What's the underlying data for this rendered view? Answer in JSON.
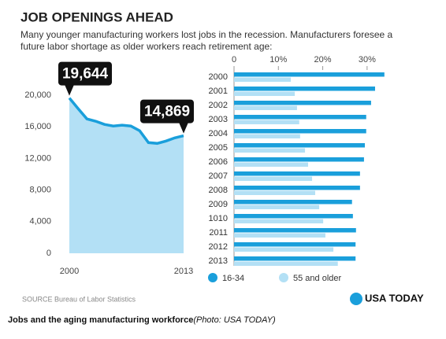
{
  "title": "JOB OPENINGS AHEAD",
  "subtitle": [
    "Many younger manufacturing workers lost jobs in the recession. Manufacturers foresee a",
    "future labor shortage as older workers reach retirement age:"
  ],
  "source": "SOURCE Bureau of Labor Statistics",
  "logo": "USA TODAY",
  "caption": "Jobs and the aging manufacturing workforce",
  "caption_credit": "(Photo: USA TODAY)",
  "chart_data": [
    {
      "type": "area",
      "x": [
        2000,
        2001,
        2002,
        2003,
        2004,
        2005,
        2006,
        2007,
        2008,
        2009,
        2010,
        2011,
        2012,
        2013
      ],
      "values": [
        19644,
        18300,
        17000,
        16700,
        16300,
        16100,
        16200,
        16100,
        15500,
        14000,
        13900,
        14200,
        14600,
        14869
      ],
      "value_labels": [
        "19,644",
        null,
        null,
        null,
        null,
        null,
        null,
        null,
        null,
        null,
        null,
        null,
        null,
        "14,869"
      ],
      "color": "#1a9fdb",
      "fill": "#b3e0f5",
      "xlim": [
        2000,
        2013
      ],
      "xticks": [
        2000,
        2013
      ],
      "ylim": [
        0,
        20000
      ],
      "yticks": [
        0,
        {
          "value": 4000,
          "label": "4,000"
        },
        {
          "value": 8000,
          "label": "8,000"
        },
        {
          "value": 12000,
          "label": "12,000"
        },
        {
          "value": 16000,
          "label": "16,000"
        },
        {
          "value": 20000,
          "label": "20,000"
        }
      ]
    },
    {
      "type": "hbar",
      "categories": [
        "2000",
        "2001",
        "2002",
        "2003",
        "2004",
        "2005",
        "2006",
        "2007",
        "2008",
        "2009",
        "1010",
        "2011",
        "2012",
        "2013"
      ],
      "series": [
        {
          "name": "16-34",
          "color": "#1a9fdb",
          "values": [
            33.9,
            31.8,
            30.9,
            29.8,
            29.8,
            29.5,
            29.3,
            28.4,
            28.4,
            26.6,
            26.8,
            27.5,
            27.4,
            27.4
          ]
        },
        {
          "name": "55 and older",
          "color": "#b3e0f5",
          "values": [
            12.8,
            13.7,
            14.2,
            14.7,
            14.9,
            16.0,
            16.7,
            17.6,
            18.3,
            19.2,
            20.1,
            20.6,
            22.4,
            23.4
          ]
        }
      ],
      "xlim": [
        0,
        35
      ],
      "xticks": [
        0,
        {
          "value": 10,
          "label": "10%"
        },
        {
          "value": 20,
          "label": "20%"
        },
        {
          "value": 30,
          "label": "30%"
        }
      ],
      "legend": "bottom"
    }
  ]
}
